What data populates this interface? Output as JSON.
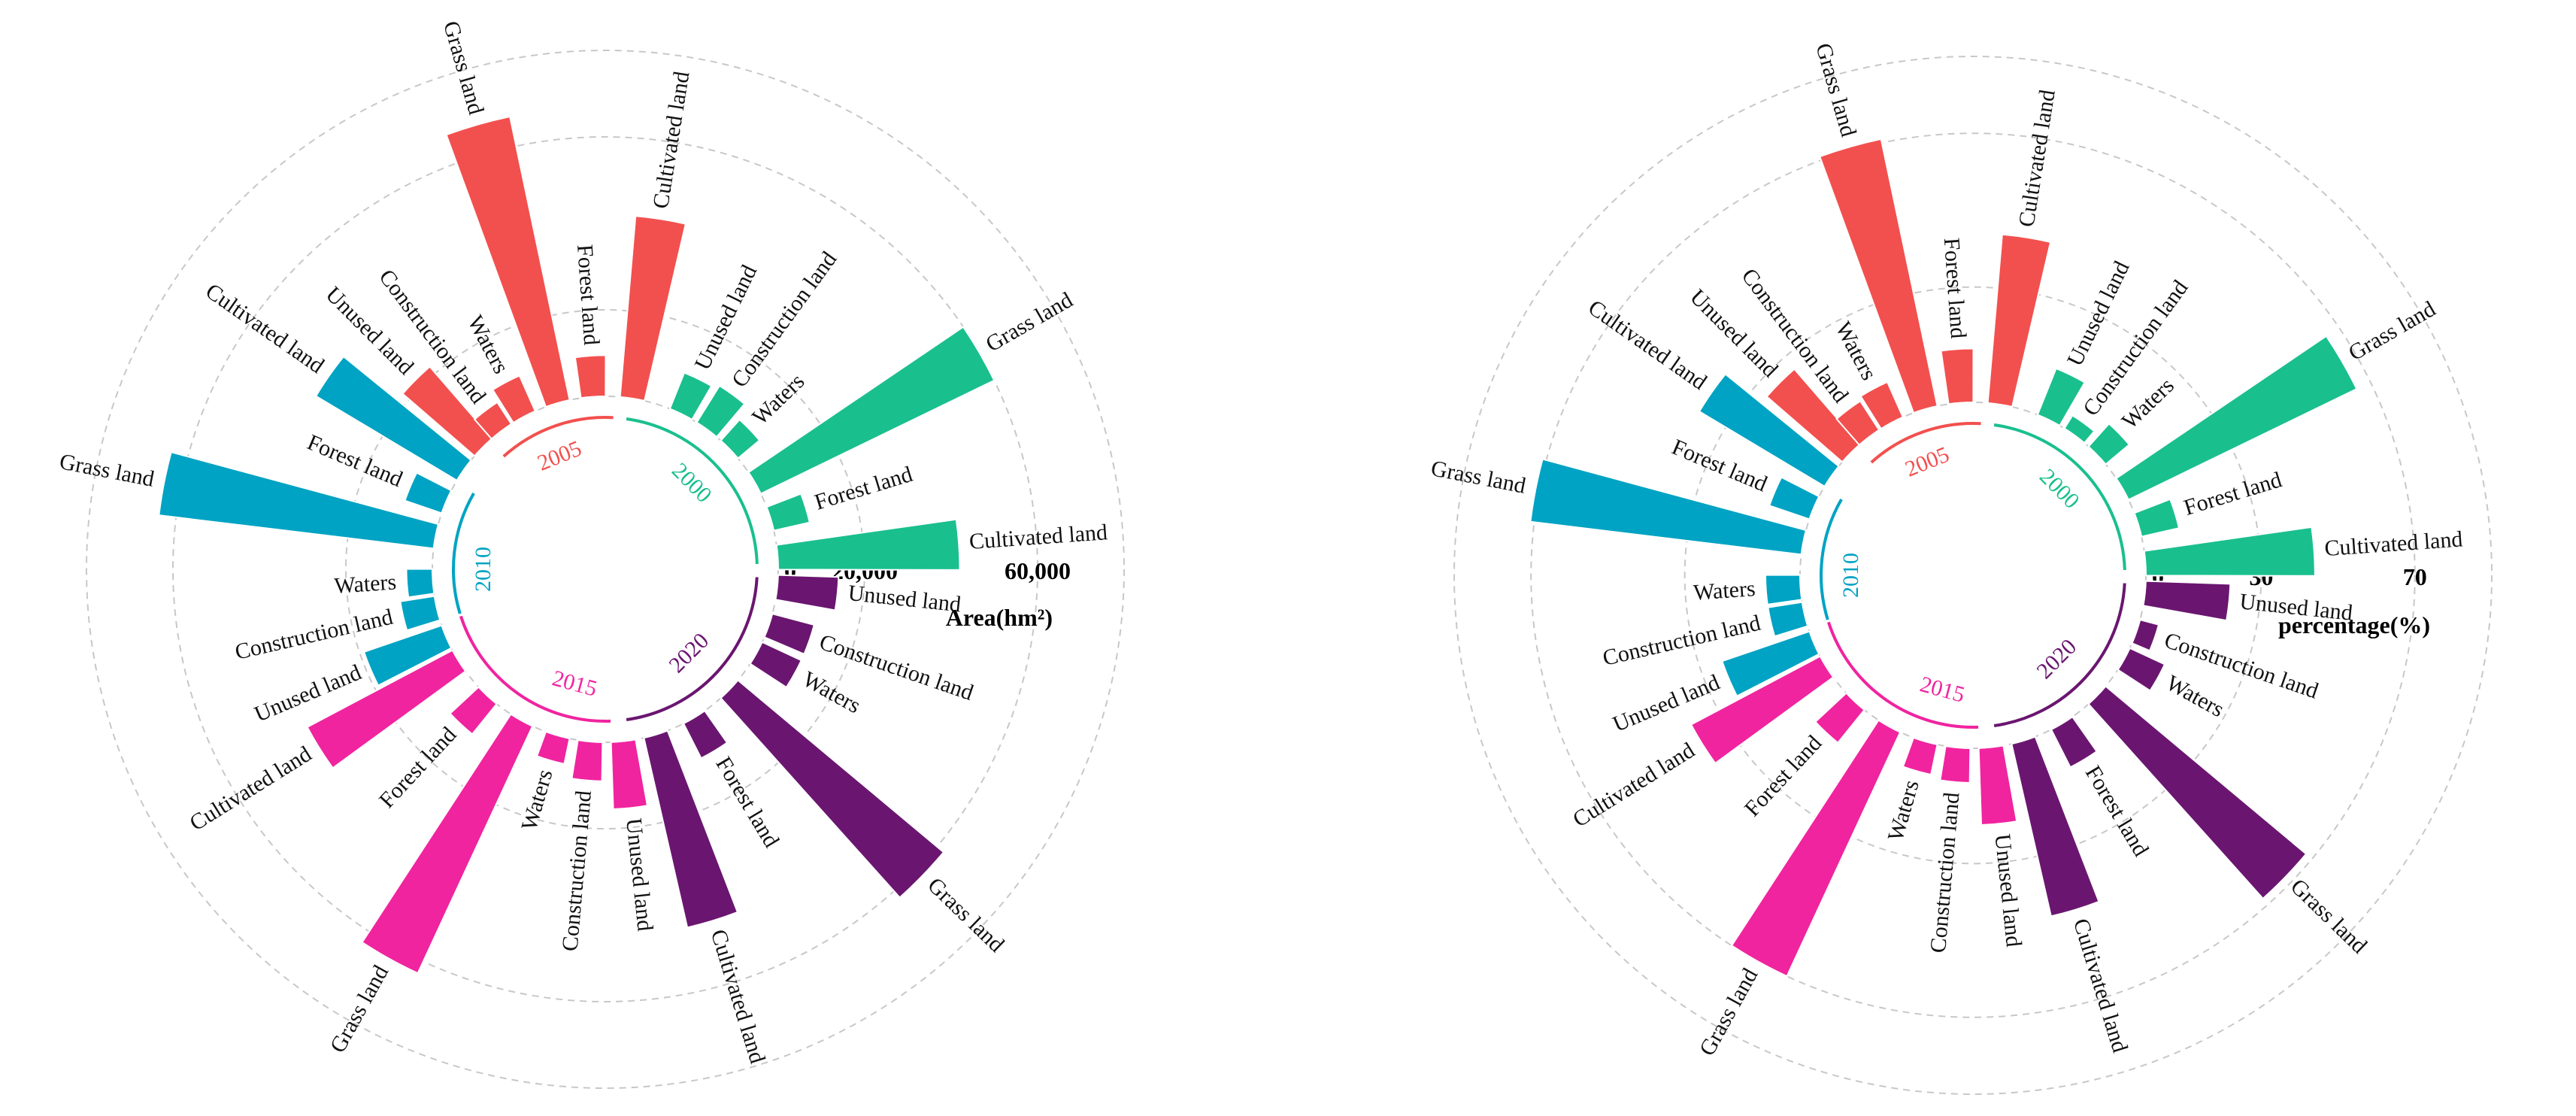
{
  "chart_data": [
    {
      "type": "circular-bar",
      "name": "area",
      "axis_title": "Area(hm²)",
      "tick_values": [
        0,
        20000,
        60000
      ],
      "tick_labels": [
        "0",
        "20,000",
        "60,000"
      ],
      "r_max": 80000,
      "groups": [
        {
          "year": "2000",
          "color": "#1ABF8E",
          "categories": [
            "Unused land",
            "Construction land",
            "Waters",
            "Grass land",
            "Forest land",
            "Cultivated land"
          ],
          "values": [
            9000,
            10000,
            6500,
            60000,
            8500,
            42000
          ]
        },
        {
          "year": "2020",
          "color": "#6A1670",
          "categories": [
            "Unused land",
            "Construction land",
            "Waters",
            "Grass land",
            "Forest land",
            "Cultivated land"
          ],
          "values": [
            14000,
            10000,
            10000,
            62000,
            9000,
            45000
          ]
        },
        {
          "year": "2015",
          "color": "#F0249F",
          "categories": [
            "Unused land",
            "Construction land",
            "Waters",
            "Grass land",
            "Forest land",
            "Cultivated land"
          ],
          "values": [
            15500,
            9000,
            6000,
            63000,
            9000,
            38000
          ]
        },
        {
          "year": "2010",
          "color": "#00A3C3",
          "categories": [
            "Unused land",
            "Construction land",
            "Waters",
            "Grass land",
            "Forest land",
            "Cultivated land"
          ],
          "values": [
            19000,
            8000,
            6000,
            64000,
            9000,
            38000
          ]
        },
        {
          "year": "2005",
          "color": "#F2504E",
          "categories": [
            "Unused land",
            "Construction land",
            "Waters",
            "Grass land",
            "Forest land",
            "Cultivated land"
          ],
          "values": [
            22000,
            6000,
            9000,
            67000,
            9500,
            42000
          ]
        }
      ]
    },
    {
      "type": "circular-bar",
      "name": "percentage",
      "axis_title": "percentage(%)",
      "tick_values": [
        0,
        30,
        70
      ],
      "tick_labels": [
        "0",
        "30",
        "70"
      ],
      "r_max": 90,
      "groups": [
        {
          "year": "2000",
          "color": "#1ABF8E",
          "categories": [
            "Unused land",
            "Construction land",
            "Waters",
            "Grass land",
            "Forest land",
            "Cultivated land"
          ],
          "values": [
            13,
            4,
            8,
            66,
            10,
            44
          ]
        },
        {
          "year": "2020",
          "color": "#6A1670",
          "categories": [
            "Unused land",
            "Construction land",
            "Waters",
            "Grass land",
            "Forest land",
            "Cultivated land"
          ],
          "values": [
            22,
            5,
            10,
            68,
            11,
            46
          ]
        },
        {
          "year": "2015",
          "color": "#F0249F",
          "categories": [
            "Unused land",
            "Construction land",
            "Waters",
            "Grass land",
            "Forest land",
            "Cultivated land"
          ],
          "values": [
            20,
            9,
            8,
            70,
            11,
            38
          ]
        },
        {
          "year": "2010",
          "color": "#00A3C3",
          "categories": [
            "Unused land",
            "Construction land",
            "Waters",
            "Grass land",
            "Forest land",
            "Cultivated land"
          ],
          "values": [
            24,
            9,
            9,
            71,
            11,
            38
          ]
        },
        {
          "year": "2005",
          "color": "#F2504E",
          "categories": [
            "Unused land",
            "Construction land",
            "Waters",
            "Grass land",
            "Forest land",
            "Cultivated land"
          ],
          "values": [
            26,
            9,
            10,
            71,
            14,
            44
          ]
        }
      ]
    }
  ]
}
